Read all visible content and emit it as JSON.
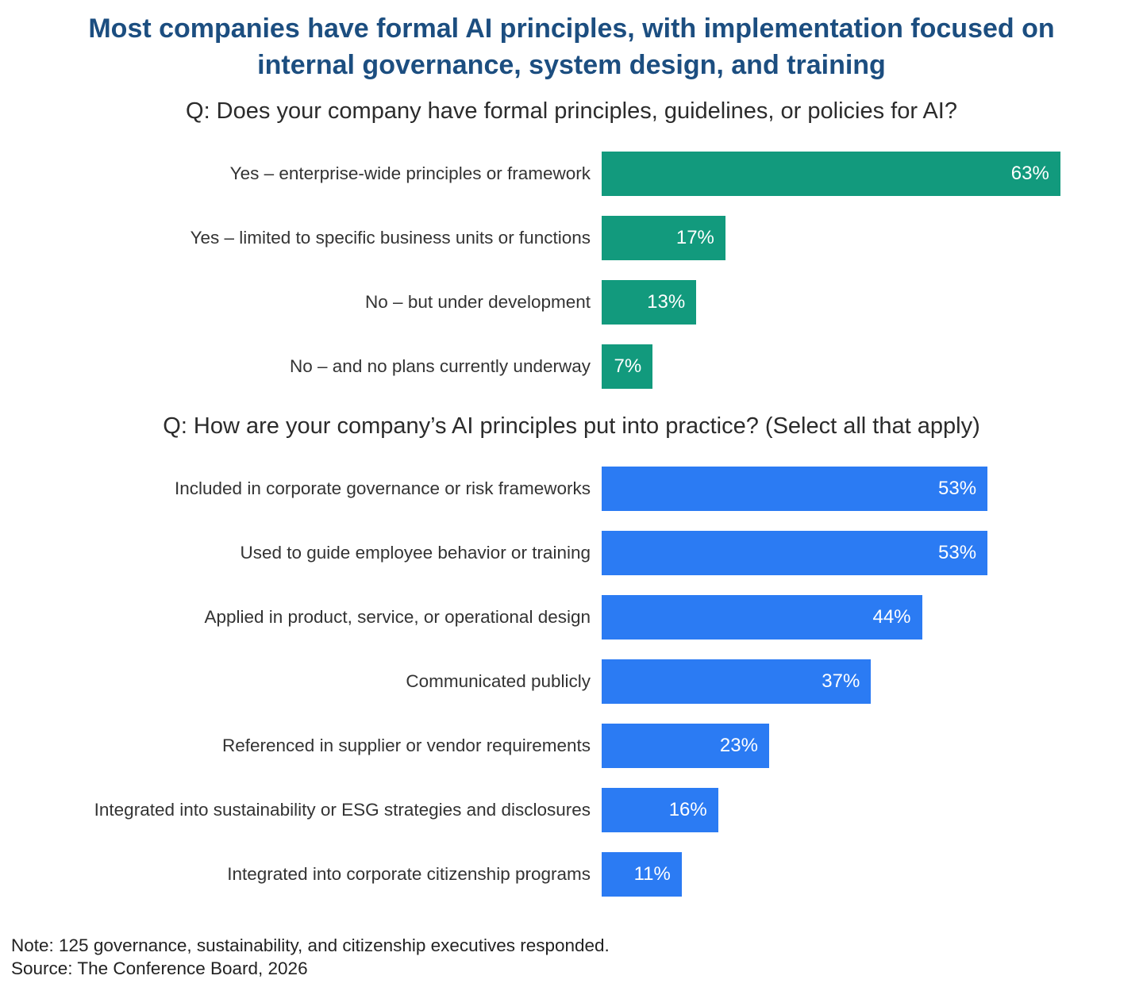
{
  "page": {
    "title": "Most companies have formal AI principles, with implementation focused on internal governance, system design, and training",
    "note": "Note: 125 governance, sustainability, and citizenship executives responded.",
    "source": "Source: The Conference Board, 2026"
  },
  "colors": {
    "title_blue": "#1c4e80",
    "green_bar": "#129a7d",
    "blue_bar": "#2b7bf3",
    "value_text": "#ffffff"
  },
  "chart_data": [
    {
      "type": "bar",
      "orientation": "horizontal",
      "title": "Q: Does your company have formal principles, guidelines, or policies for AI?",
      "bar_color": "#129a7d",
      "xlim": [
        0,
        70
      ],
      "grid": false,
      "legend": "none",
      "categories": [
        "Yes – enterprise-wide principles or framework",
        "Yes – limited to specific business units or functions",
        "No – but under development",
        "No – and no plans currently underway"
      ],
      "values": [
        63,
        17,
        13,
        7
      ],
      "rows": [
        {
          "label": "Yes – enterprise-wide principles or framework",
          "value": 63,
          "value_label": "63%"
        },
        {
          "label": "Yes – limited to specific business units or functions",
          "value": 17,
          "value_label": "17%"
        },
        {
          "label": "No – but under development",
          "value": 13,
          "value_label": "13%"
        },
        {
          "label": "No – and no plans currently underway",
          "value": 7,
          "value_label": "7%"
        }
      ]
    },
    {
      "type": "bar",
      "orientation": "horizontal",
      "title": "Q: How are your company’s AI principles put into practice? (Select all that apply)",
      "bar_color": "#2b7bf3",
      "xlim": [
        0,
        70
      ],
      "grid": false,
      "legend": "none",
      "categories": [
        "Included in corporate governance or risk frameworks",
        "Used to guide employee behavior or training",
        "Applied in product, service, or operational design",
        "Communicated publicly",
        "Referenced in supplier or vendor requirements",
        "Integrated into sustainability or ESG strategies and disclosures",
        "Integrated into corporate citizenship programs"
      ],
      "values": [
        53,
        53,
        44,
        37,
        23,
        16,
        11
      ],
      "rows": [
        {
          "label": "Included in corporate governance or risk frameworks",
          "value": 53,
          "value_label": "53%"
        },
        {
          "label": "Used to guide employee behavior or training",
          "value": 53,
          "value_label": "53%"
        },
        {
          "label": "Applied in product, service, or operational design",
          "value": 44,
          "value_label": "44%"
        },
        {
          "label": "Communicated publicly",
          "value": 37,
          "value_label": "37%"
        },
        {
          "label": "Referenced in supplier or vendor requirements",
          "value": 23,
          "value_label": "23%"
        },
        {
          "label": "Integrated into sustainability or ESG strategies and disclosures",
          "value": 16,
          "value_label": "16%"
        },
        {
          "label": "Integrated into corporate citizenship programs",
          "value": 11,
          "value_label": "11%"
        }
      ]
    }
  ]
}
